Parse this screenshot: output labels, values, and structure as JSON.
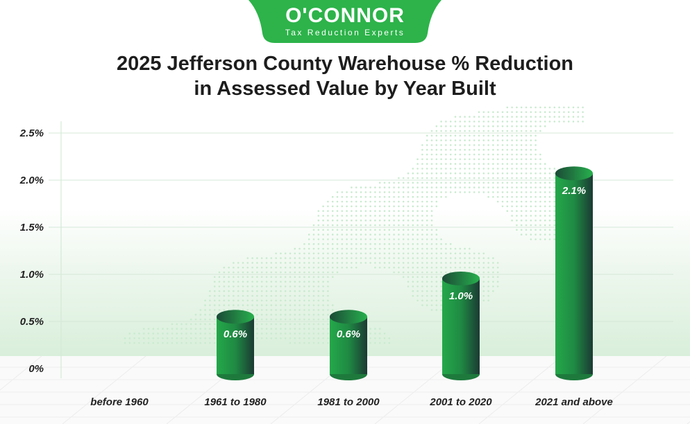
{
  "logo": {
    "name": "O'CONNOR",
    "tagline": "Tax Reduction Experts",
    "color": "#2db34a"
  },
  "chart_data": {
    "type": "bar",
    "title": "2025 Jefferson County Warehouse % Reduction in Assessed Value by Year Built",
    "title_lines": [
      "2025 Jefferson County Warehouse % Reduction",
      "in Assessed Value by Year Built"
    ],
    "categories": [
      "before 1960",
      "1961 to 1980",
      "1981 to 2000",
      "2001 to 2020",
      "2021 and above"
    ],
    "values": [
      0,
      0.6,
      0.6,
      1.0,
      2.1
    ],
    "data_labels": [
      "",
      "0.6%",
      "0.6%",
      "1.0%",
      "2.1%"
    ],
    "yticks": [
      "0%",
      "0.5%",
      "1.0%",
      "1.5%",
      "2.0%",
      "2.5%"
    ],
    "ylim": [
      0,
      2.5
    ],
    "xlabel": "",
    "ylabel": "",
    "grid": true,
    "bar_style": "3d cylinder",
    "bar_color": "#22a447"
  }
}
